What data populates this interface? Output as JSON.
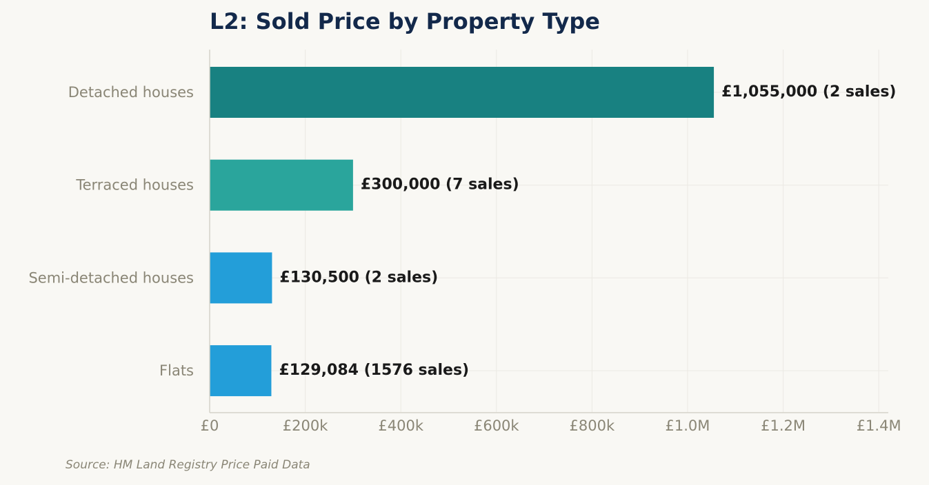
{
  "title": "L2: Sold Price by Property Type",
  "source": "Source: HM Land Registry Price Paid Data",
  "colors": {
    "background": "#f9f8f4",
    "title": "#13294b",
    "grid": "#ebe9e3",
    "axis": "#d5d3c9",
    "muted_text": "#8a8676",
    "label_text": "#1a1a1a"
  },
  "chart_data": {
    "type": "bar",
    "orientation": "horizontal",
    "title": "L2: Sold Price by Property Type",
    "categories": [
      "Detached houses",
      "Terraced houses",
      "Semi-detached houses",
      "Flats"
    ],
    "values": [
      1055000,
      300000,
      130500,
      129084
    ],
    "sales_counts": [
      2,
      7,
      2,
      1576
    ],
    "data_labels": [
      "£1,055,000  (2 sales)",
      "£300,000  (7 sales)",
      "£130,500  (2 sales)",
      "£129,084  (1576 sales)"
    ],
    "bar_colors": [
      "#188181",
      "#2aa59c",
      "#239ed9",
      "#239ed9"
    ],
    "xlim": [
      0,
      1420000
    ],
    "xticks": [
      0,
      200000,
      400000,
      600000,
      800000,
      1000000,
      1200000,
      1400000
    ],
    "xtick_labels": [
      "£0",
      "£200k",
      "£400k",
      "£600k",
      "£800k",
      "£1.0M",
      "£1.2M",
      "£1.4M"
    ],
    "xlabel": "",
    "ylabel": "",
    "grid": true,
    "legend": "none"
  }
}
